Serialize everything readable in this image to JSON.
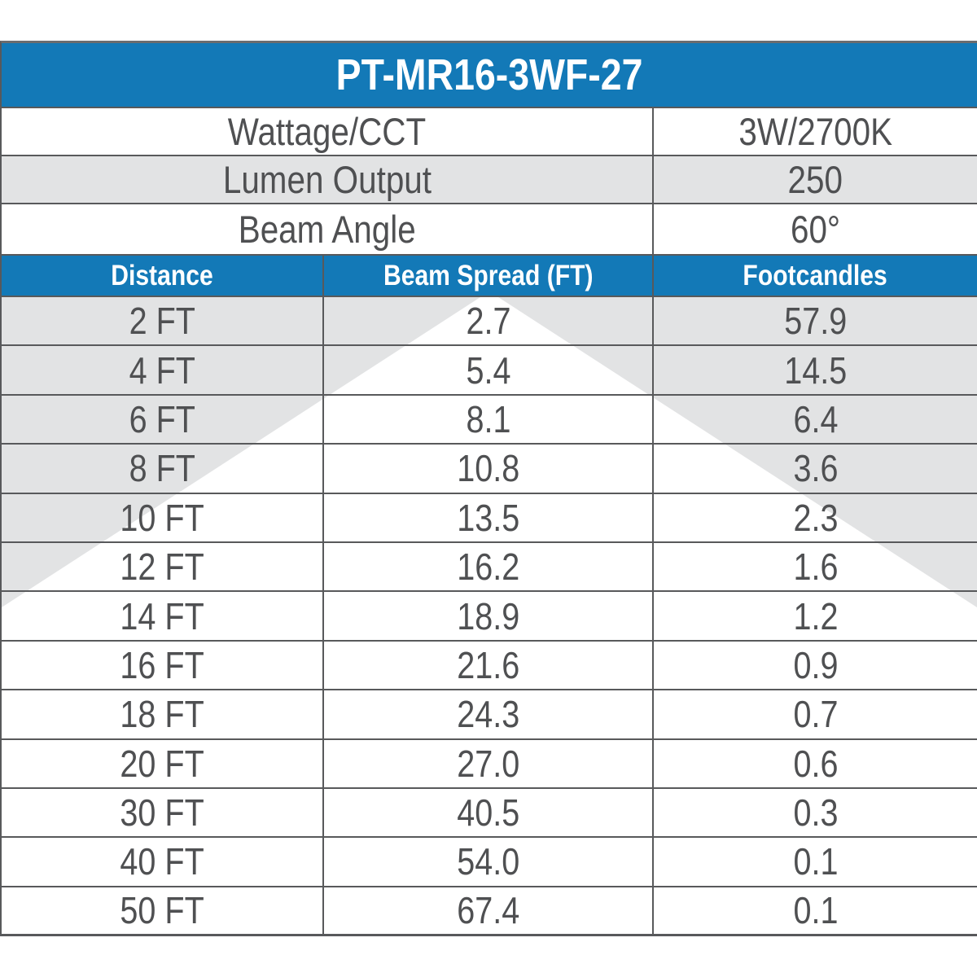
{
  "title": "PT-MR16-3WF-27",
  "info": {
    "rows": [
      {
        "label": "Wattage/CCT",
        "value": "3W/2700K"
      },
      {
        "label": "Lumen Output",
        "value": "250"
      },
      {
        "label": "Beam Angle",
        "value": "60°"
      }
    ]
  },
  "chart_data": {
    "type": "table",
    "title": "PT-MR16-3WF-27",
    "spec_rows": [
      [
        "Wattage/CCT",
        "3W/2700K"
      ],
      [
        "Lumen Output",
        "250"
      ],
      [
        "Beam Angle",
        "60°"
      ]
    ],
    "columns": [
      "Distance",
      "Beam Spread (FT)",
      "Footcandles"
    ],
    "rows": [
      [
        "2 FT",
        "2.7",
        "57.9"
      ],
      [
        "4 FT",
        "5.4",
        "14.5"
      ],
      [
        "6 FT",
        "8.1",
        "6.4"
      ],
      [
        "8 FT",
        "10.8",
        "3.6"
      ],
      [
        "10 FT",
        "13.5",
        "2.3"
      ],
      [
        "12 FT",
        "16.2",
        "1.6"
      ],
      [
        "14 FT",
        "18.9",
        "1.2"
      ],
      [
        "16 FT",
        "21.6",
        "0.9"
      ],
      [
        "18 FT",
        "24.3",
        "0.7"
      ],
      [
        "20 FT",
        "27.0",
        "0.6"
      ],
      [
        "30 FT",
        "40.5",
        "0.3"
      ],
      [
        "40 FT",
        "54.0",
        "0.1"
      ],
      [
        "50 FT",
        "67.4",
        "0.1"
      ]
    ],
    "graphic": "beam-spread-triangle",
    "layout": {
      "grid": true,
      "legend": "none"
    }
  },
  "colors": {
    "header_blue": "#1379b7",
    "row_shade_gray": "#e2e3e4",
    "grid_line_gray": "#58595b",
    "text_gray": "#4f5052",
    "background": "#ffffff"
  }
}
